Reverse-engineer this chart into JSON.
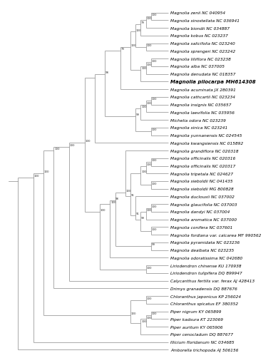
{
  "taxa": [
    "Magnolia zenii NC 040954",
    "Magnolia sinostellata NC 036941",
    "Magnolia biondii NC 034887",
    "Magnolia kobus NC 023237",
    "Magnolia salicifolia NC 023240",
    "Magnolia sprengeri NC 023242",
    "Magnolia liliiflora NC 023238",
    "Magnolia alba NC 037005",
    "Magnolia denudata NC 018357",
    "Magnolia pilocarpa MH614308",
    "Magnolia acuminata JX 280391",
    "Magnolia cathcartii NC 023234",
    "Magnolia insignis NC 035657",
    "Magnolia laevifolia NC 035956",
    "Michelia odora NC 023239",
    "Magnolia sinica NC 023241",
    "Magnolia yunnanensis NC 024545",
    "Magnolia kwangsiensis NC 015892",
    "Magnolia grandiflora NC 020318",
    "Magnolia officinalis NC 020316",
    "Magnolia officinalis NC 020317",
    "Magnolia tripetala NC 024627",
    "Magnolia sieboldii NC 041435",
    "Magnolia sieboldii MG 800828",
    "Magnolia duclouxii NC 037002",
    "Magnolia glaucifolia NC 037003",
    "Magnolia dandyi NC 037004",
    "Magnolia aromatica NC 037000",
    "Magnolia conifera NC 037601",
    "Magnolia fordiana var. calcarea MF 990562",
    "Magnolia pyramidata NC 023236",
    "Magnolia dealbata NC 023235",
    "Magnolia odoratissima NC 042680",
    "Liriodendron chinense KU 170938",
    "Liriodendron tulipifera DQ 899947",
    "Calycanthus fertilis var. ferax AJ 428413",
    "Drimys granadensis DQ 887676",
    "Chloranthus japonicus KP 256024",
    "Chloranthus spicatus EF 380352",
    "Piper nigrum KY 065899",
    "Piper kadsura KT 223069",
    "Piper auritum KY 065906",
    "Piper cenocladum DQ 887677",
    "Illicium floridanum NC 034685",
    "Amborella trichopoda AJ 506156"
  ],
  "bold_taxon": "Magnolia pilocarpa MH614308",
  "tree_color": "#888888",
  "text_color": "#000000",
  "background_color": "#ffffff",
  "font_size": 4.2,
  "bold_font_size": 5.0,
  "bs_font_size": 2.8,
  "line_width": 0.5
}
